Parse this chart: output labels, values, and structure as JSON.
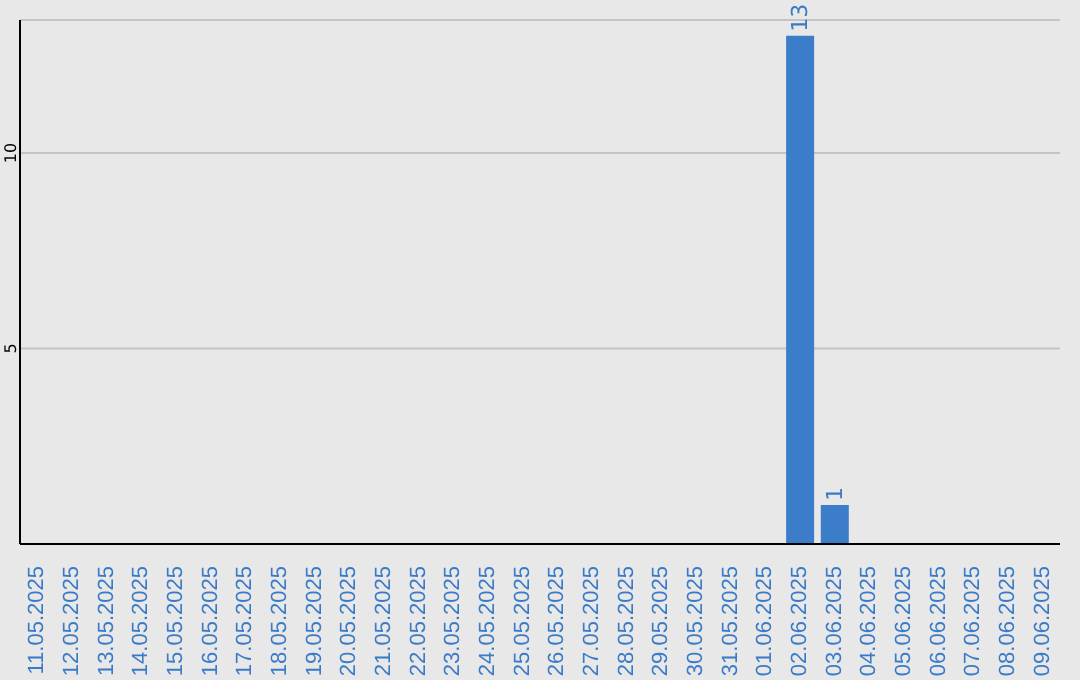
{
  "chart_data": {
    "type": "bar",
    "categories": [
      "11.05.2025",
      "12.05.2025",
      "13.05.2025",
      "14.05.2025",
      "15.05.2025",
      "16.05.2025",
      "17.05.2025",
      "18.05.2025",
      "19.05.2025",
      "20.05.2025",
      "21.05.2025",
      "22.05.2025",
      "23.05.2025",
      "24.05.2025",
      "25.05.2025",
      "26.05.2025",
      "27.05.2025",
      "28.05.2025",
      "29.05.2025",
      "30.05.2025",
      "31.05.2025",
      "01.06.2025",
      "02.06.2025",
      "03.06.2025",
      "04.06.2025",
      "05.06.2025",
      "06.06.2025",
      "07.06.2025",
      "08.06.2025",
      "09.06.2025"
    ],
    "values": [
      0,
      0,
      0,
      0,
      0,
      0,
      0,
      0,
      0,
      0,
      0,
      0,
      0,
      0,
      0,
      0,
      0,
      0,
      0,
      0,
      0,
      0,
      13,
      1,
      0,
      0,
      0,
      0,
      0,
      0
    ],
    "value_labels": [
      null,
      null,
      null,
      null,
      null,
      null,
      null,
      null,
      null,
      null,
      null,
      null,
      null,
      null,
      null,
      null,
      null,
      null,
      null,
      null,
      null,
      null,
      "13",
      "1",
      null,
      null,
      null,
      null,
      null,
      null
    ],
    "color": "#3b7dc8",
    "ylim": [
      0,
      13.4
    ],
    "yticks": [
      5,
      10
    ],
    "grid": "y"
  }
}
